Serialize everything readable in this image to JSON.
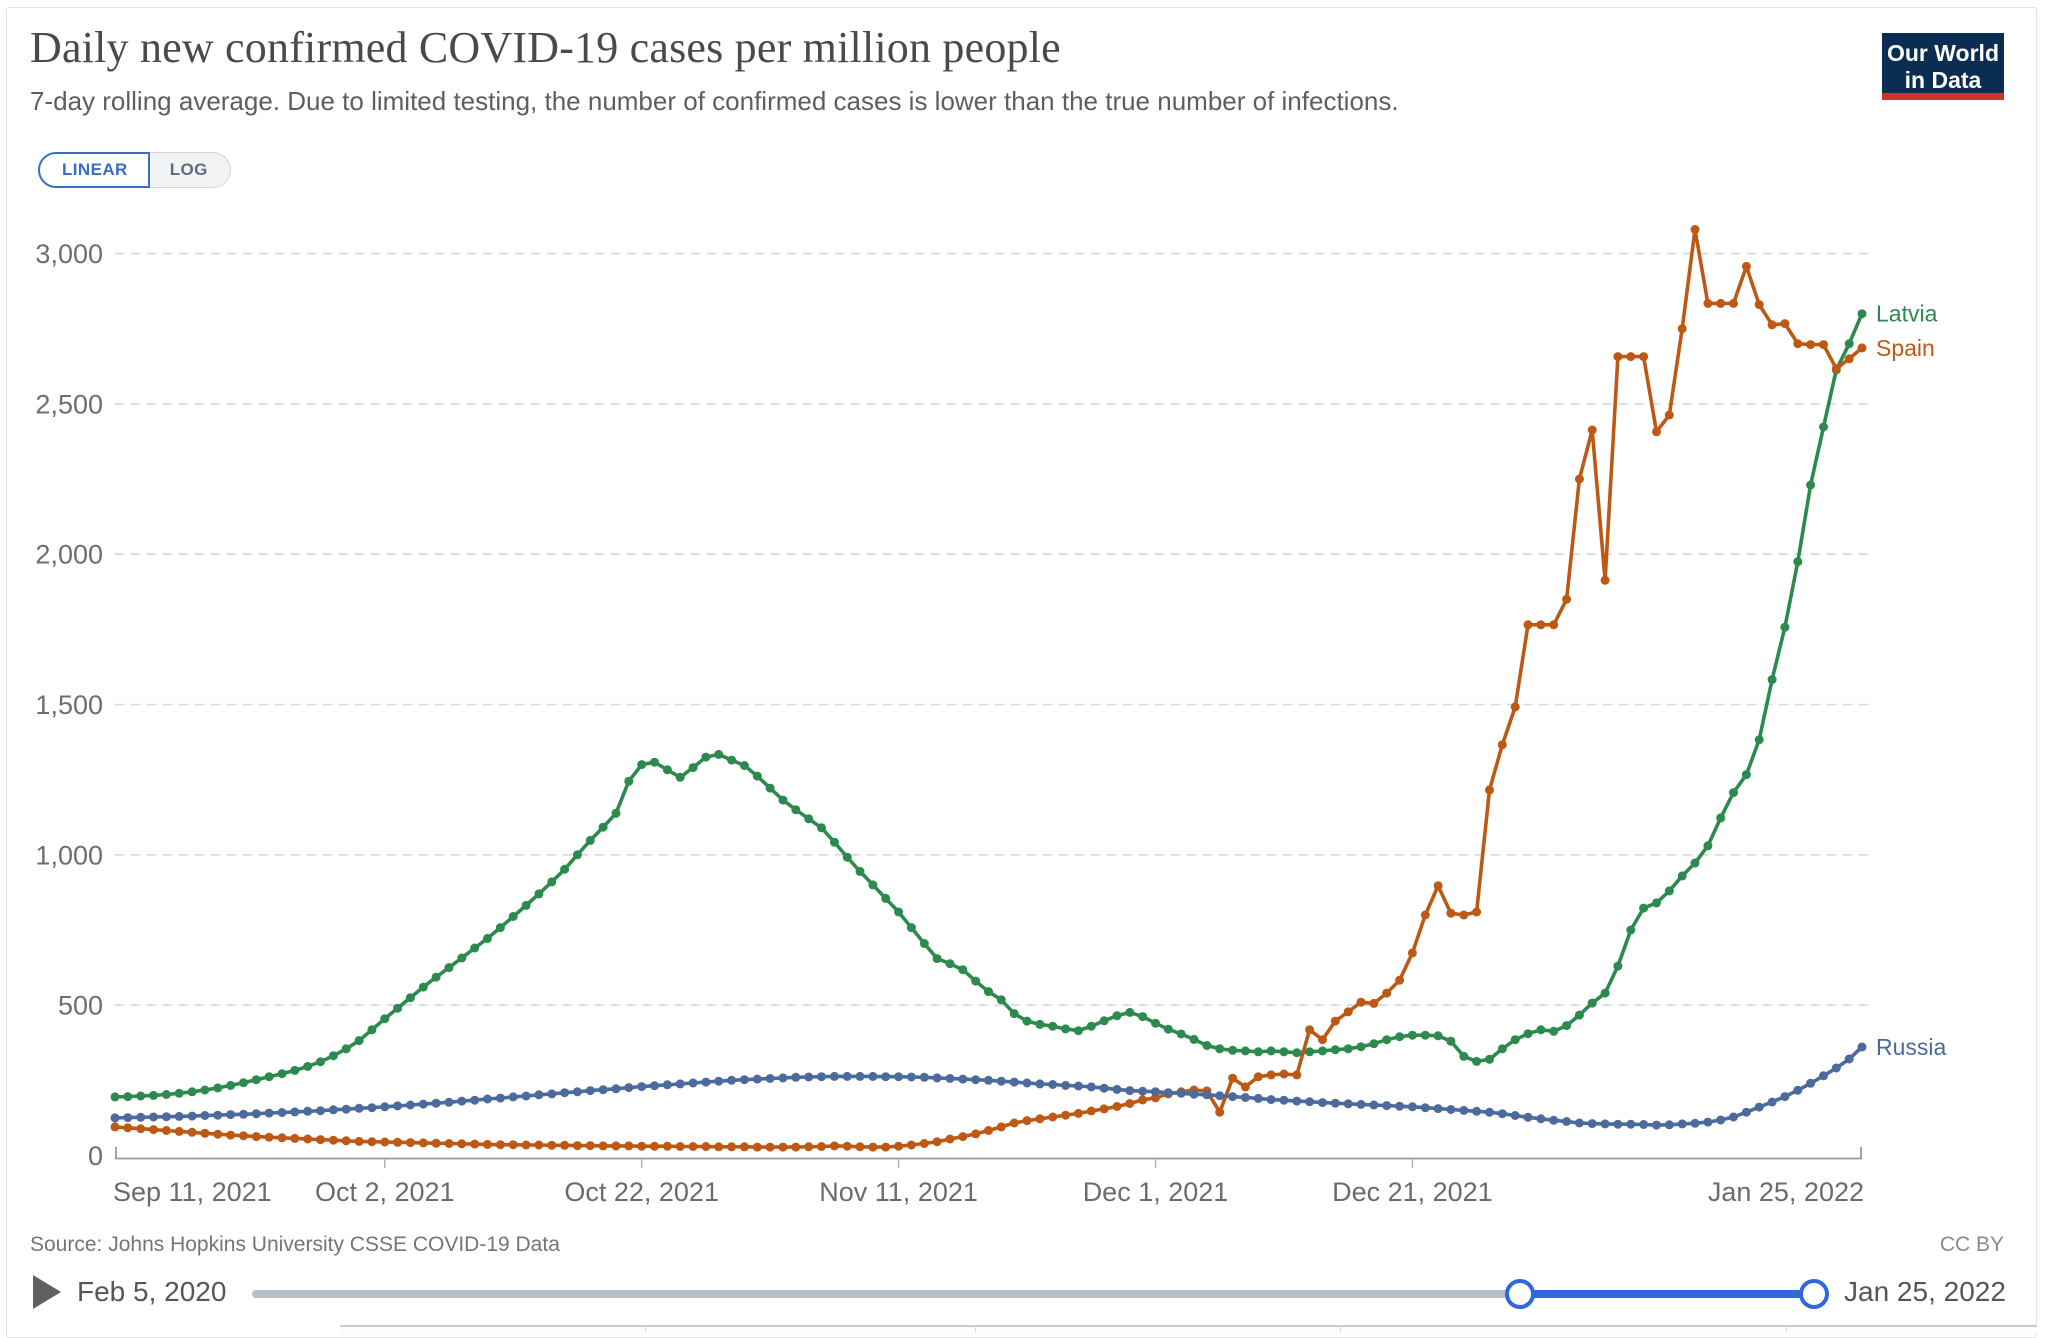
{
  "header": {
    "title": "Daily new confirmed COVID-19 cases per million people",
    "subtitle": "7-day rolling average. Due to limited testing, the number of confirmed cases is lower than the true number of infections.",
    "logo_line1": "Our World",
    "logo_line2": "in Data",
    "logo_bg": "#0c2d52",
    "logo_bar_color": "#cc3425"
  },
  "toggle": {
    "linear": "LINEAR",
    "log": "LOG",
    "active": "LINEAR",
    "accent": "#3a6bc7"
  },
  "footer": {
    "source": "Source: Johns Hopkins University CSSE COVID-19 Data",
    "license": "CC BY"
  },
  "timeline": {
    "start_label": "Feb 5, 2020",
    "end_label": "Jan 25, 2022",
    "selected_start": "Sep 11, 2021",
    "selected_end": "Jan 25, 2022",
    "accent": "#2d68dd"
  },
  "chart_data": {
    "type": "line",
    "title": "Daily new confirmed COVID-19 cases per million people",
    "x_start_date": "Sep 11, 2021",
    "x_end_date": "Jan 25, 2022",
    "total_days": 136,
    "ylim": [
      0,
      3000
    ],
    "yticks": [
      0,
      500,
      1000,
      1500,
      2000,
      2500,
      3000
    ],
    "ytick_labels": [
      "0",
      "500",
      "1,000",
      "1,500",
      "2,000",
      "2,500",
      "3,000"
    ],
    "x_ticks": [
      {
        "day": 0,
        "label": "Sep 11, 2021"
      },
      {
        "day": 21,
        "label": "Oct 2, 2021"
      },
      {
        "day": 41,
        "label": "Oct 22, 2021"
      },
      {
        "day": 61,
        "label": "Nov 11, 2021"
      },
      {
        "day": 81,
        "label": "Dec 1, 2021"
      },
      {
        "day": 101,
        "label": "Dec 21, 2021"
      },
      {
        "day": 136,
        "label": "Jan 25, 2022"
      }
    ],
    "grid": true,
    "legend_position": "end-of-line",
    "series": [
      {
        "name": "Latvia",
        "color": "#2c8a4f",
        "values": [
          195,
          196,
          198,
          200,
          203,
          207,
          212,
          218,
          225,
          233,
          242,
          252,
          262,
          272,
          283,
          296,
          312,
          332,
          355,
          382,
          418,
          455,
          490,
          525,
          560,
          593,
          625,
          657,
          690,
          722,
          758,
          795,
          832,
          870,
          910,
          952,
          1000,
          1048,
          1092,
          1138,
          1245,
          1300,
          1308,
          1283,
          1258,
          1290,
          1325,
          1334,
          1315,
          1297,
          1262,
          1222,
          1182,
          1150,
          1120,
          1090,
          1042,
          992,
          945,
          900,
          855,
          810,
          758,
          705,
          655,
          638,
          618,
          580,
          545,
          518,
          472,
          447,
          436,
          430,
          421,
          415,
          430,
          448,
          465,
          476,
          462,
          440,
          420,
          404,
          386,
          366,
          355,
          350,
          348,
          345,
          348,
          345,
          342,
          345,
          348,
          352,
          355,
          362,
          372,
          385,
          395,
          400,
          400,
          398,
          380,
          330,
          313,
          320,
          355,
          385,
          405,
          418,
          413,
          432,
          467,
          507,
          540,
          630,
          750,
          823,
          840,
          880,
          930,
          973,
          1030,
          1123,
          1207,
          1267,
          1383,
          1583,
          1757,
          1975,
          2230,
          2423,
          2613,
          2700,
          2800
        ]
      },
      {
        "name": "Spain",
        "color": "#be5915",
        "values": [
          95,
          92,
          89,
          86,
          83,
          80,
          77,
          74,
          71,
          68,
          66,
          63,
          61,
          59,
          57,
          55,
          53,
          51,
          49,
          47,
          46,
          45,
          44,
          43,
          42,
          41,
          40,
          39,
          38,
          37,
          36,
          36,
          35,
          35,
          34,
          34,
          33,
          33,
          32,
          32,
          32,
          31,
          31,
          31,
          30,
          30,
          30,
          29,
          29,
          29,
          28,
          28,
          28,
          28,
          29,
          30,
          32,
          31,
          29,
          28,
          28,
          31,
          35,
          40,
          46,
          55,
          63,
          72,
          83,
          95,
          108,
          116,
          122,
          128,
          134,
          140,
          148,
          155,
          163,
          173,
          185,
          192,
          205,
          212,
          218,
          215,
          144,
          257,
          228,
          262,
          268,
          271,
          268,
          418,
          385,
          447,
          478,
          510,
          506,
          540,
          583,
          674,
          800,
          897,
          806,
          800,
          810,
          1216,
          1366,
          1492,
          1765,
          1765,
          1765,
          1850,
          2250,
          2413,
          1913,
          2657,
          2657,
          2657,
          2407,
          2463,
          2750,
          3080,
          2834,
          2834,
          2834,
          2957,
          2830,
          2763,
          2767,
          2700,
          2697,
          2697,
          2617,
          2650,
          2686
        ]
      },
      {
        "name": "Russia",
        "color": "#4c6a9c",
        "values": [
          125,
          126,
          127,
          128,
          129,
          130,
          131,
          133,
          134,
          136,
          137,
          139,
          141,
          143,
          145,
          147,
          149,
          152,
          154,
          157,
          159,
          162,
          165,
          168,
          171,
          174,
          177,
          181,
          184,
          188,
          191,
          195,
          198,
          202,
          205,
          209,
          212,
          216,
          219,
          222,
          226,
          229,
          232,
          235,
          238,
          241,
          244,
          247,
          250,
          252,
          254,
          256,
          258,
          260,
          261,
          262,
          263,
          263,
          263,
          263,
          262,
          262,
          261,
          260,
          258,
          256,
          254,
          252,
          250,
          247,
          244,
          241,
          238,
          236,
          233,
          231,
          228,
          224,
          220,
          216,
          214,
          212,
          209,
          207,
          204,
          202,
          199,
          196,
          193,
          190,
          186,
          184,
          181,
          179,
          176,
          174,
          172,
          170,
          168,
          166,
          164,
          162,
          159,
          156,
          153,
          150,
          147,
          144,
          139,
          133,
          127,
          122,
          117,
          113,
          108,
          106,
          105,
          104,
          104,
          103,
          101,
          102,
          105,
          107,
          111,
          118,
          128,
          144,
          161,
          178,
          196,
          217,
          240,
          265,
          291,
          321,
          361
        ]
      }
    ]
  }
}
